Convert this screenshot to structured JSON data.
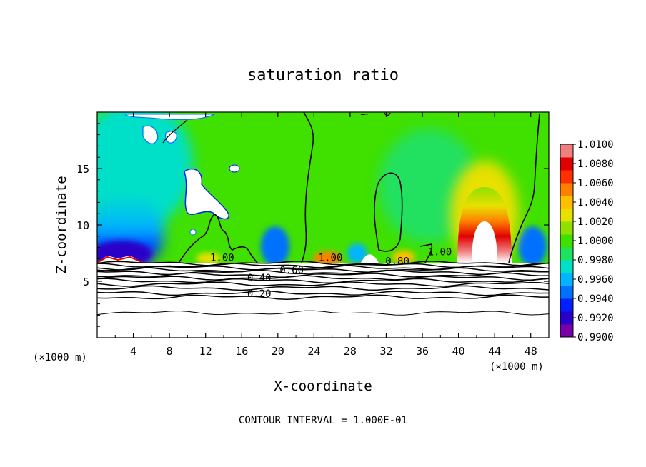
{
  "chart_data": {
    "type": "heatmap",
    "title": "saturation ratio",
    "xlabel": "X-coordinate",
    "ylabel": "Z-coordinate",
    "x_unit": "(×1000 m)",
    "x_unit_right": "(×1000 m)",
    "footer": "CONTOUR INTERVAL = 1.000E-01",
    "xlim": [
      0,
      50
    ],
    "ylim": [
      0,
      20
    ],
    "x_ticks": [
      4,
      8,
      12,
      16,
      20,
      24,
      28,
      32,
      36,
      40,
      44,
      48
    ],
    "y_ticks": [
      5,
      10,
      15
    ],
    "colorbar": {
      "range": [
        0.99,
        1.01
      ],
      "labels": [
        "1.0100",
        "1.0080",
        "1.0060",
        "1.0040",
        "1.0020",
        "1.0000",
        "0.9980",
        "0.9960",
        "0.9940",
        "0.9920",
        "0.9900"
      ],
      "colors": [
        "#7a00a8",
        "#2a00c8",
        "#0020ff",
        "#0070ff",
        "#00b4ff",
        "#00e0c8",
        "#20e060",
        "#40e000",
        "#90e000",
        "#e8e000",
        "#ffc000",
        "#ff8000",
        "#ff3000",
        "#e00000",
        "#f08080"
      ]
    },
    "contour_labels": [
      {
        "text": "1.00",
        "x": 12.5,
        "y": 6.8
      },
      {
        "text": "0.60",
        "x": 20.2,
        "y": 5.7
      },
      {
        "text": "0.40",
        "x": 16.6,
        "y": 5.0
      },
      {
        "text": "0.20",
        "x": 16.6,
        "y": 3.6
      },
      {
        "text": "1.00",
        "x": 24.5,
        "y": 6.8
      },
      {
        "text": "0.80",
        "x": 31.9,
        "y": 6.5
      },
      {
        "text": "1.00",
        "x": 36.6,
        "y": 7.3
      }
    ]
  }
}
